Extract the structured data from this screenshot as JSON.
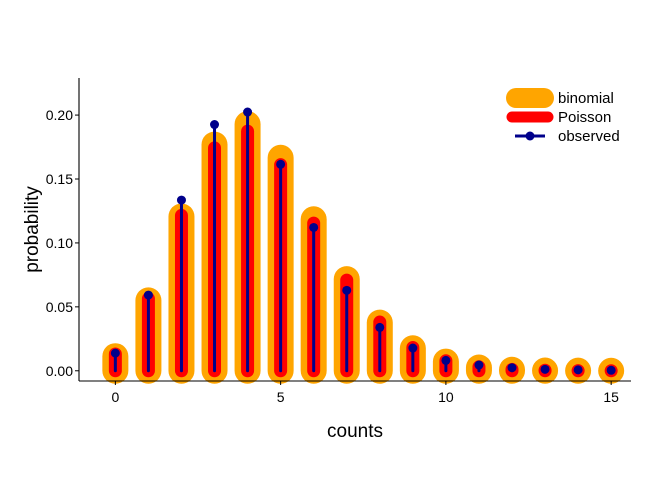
{
  "chart_data": {
    "type": "line",
    "xlabel": "counts",
    "ylabel": "probability",
    "xlim": [
      -1.1,
      15.6
    ],
    "ylim": [
      -0.008,
      0.229
    ],
    "x_ticks": [
      0,
      5,
      10,
      15
    ],
    "y_ticks": [
      0.0,
      0.05,
      0.1,
      0.15,
      0.2
    ],
    "y_tick_labels": [
      "0.00",
      "0.05",
      "0.10",
      "0.15",
      "0.20"
    ],
    "grid": false,
    "legend_position": "top-right",
    "x": [
      0,
      1,
      2,
      3,
      4,
      5,
      6,
      7,
      8,
      9,
      10,
      11,
      12,
      13,
      14,
      15
    ],
    "series": [
      {
        "name": "binomial",
        "style": "thick-line",
        "color": "#FFA500",
        "values": [
          0.0114,
          0.0551,
          0.1207,
          0.1769,
          0.1929,
          0.1666,
          0.1185,
          0.0717,
          0.0377,
          0.0176,
          0.0072,
          0.0026,
          0.0008,
          0.0002,
          0.0001,
          0.0
        ]
      },
      {
        "name": "Poisson",
        "style": "medium-line",
        "color": "#FF0000",
        "values": [
          0.0131,
          0.0565,
          0.1215,
          0.1743,
          0.1874,
          0.1612,
          0.1155,
          0.0709,
          0.0381,
          0.0182,
          0.0078,
          0.0031,
          0.0011,
          0.0004,
          0.0001,
          0.0
        ]
      },
      {
        "name": "observed",
        "style": "line-with-points",
        "color": "#00008B",
        "values": [
          0.0138,
          0.0592,
          0.1335,
          0.1926,
          0.2024,
          0.1615,
          0.1121,
          0.0629,
          0.0339,
          0.0178,
          0.0081,
          0.0045,
          0.0024,
          0.0011,
          0.0007,
          0.0004
        ]
      }
    ]
  }
}
